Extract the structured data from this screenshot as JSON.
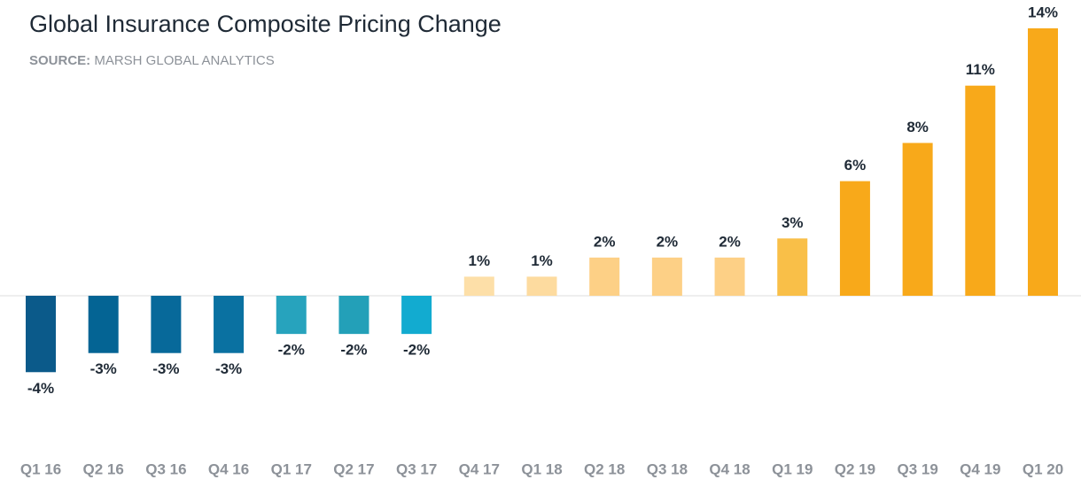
{
  "chart_data": {
    "type": "bar",
    "title": "Global Insurance Composite Pricing Change",
    "source_label": "SOURCE:",
    "source": "MARSH GLOBAL ANALYTICS",
    "categories": [
      "Q1 16",
      "Q2 16",
      "Q3 16",
      "Q4 16",
      "Q1 17",
      "Q2 17",
      "Q3 17",
      "Q4 17",
      "Q1 18",
      "Q2 18",
      "Q3 18",
      "Q4 18",
      "Q1 19",
      "Q2 19",
      "Q3 19",
      "Q4 19",
      "Q1 20"
    ],
    "values": [
      -4,
      -3,
      -3,
      -3,
      -2,
      -2,
      -2,
      1,
      1,
      2,
      2,
      2,
      3,
      6,
      8,
      11,
      14
    ],
    "value_labels": [
      "-4%",
      "-3%",
      "-3%",
      "-3%",
      "-2%",
      "-2%",
      "-2%",
      "1%",
      "1%",
      "2%",
      "2%",
      "2%",
      "3%",
      "6%",
      "8%",
      "11%",
      "14%"
    ],
    "colors": [
      "#0b5a8a",
      "#046494",
      "#07699a",
      "#0a71a1",
      "#27a3bd",
      "#23a0b8",
      "#12abd0",
      "#fddfa8",
      "#fddb9f",
      "#fdd086",
      "#fdd086",
      "#fdd086",
      "#f9bf48",
      "#f8a91a",
      "#f8a91a",
      "#f8a91a",
      "#f8a91a"
    ]
  }
}
